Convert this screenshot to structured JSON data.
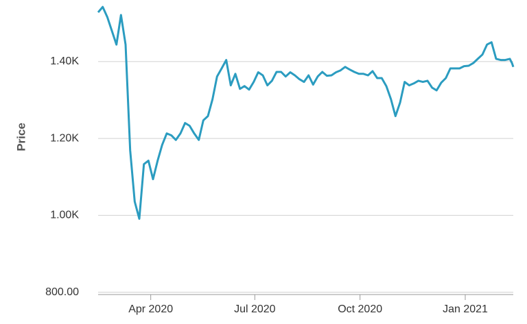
{
  "chart_data": {
    "type": "line",
    "y_label": "Price",
    "color": "#2b9cc0",
    "grid": true,
    "ylim": [
      794,
      1560
    ],
    "yticks": [
      {
        "value": 800,
        "label": "800.00"
      },
      {
        "value": 1000,
        "label": "1.00K"
      },
      {
        "value": 1200,
        "label": "1.20K"
      },
      {
        "value": 1400,
        "label": "1.40K"
      }
    ],
    "xlim": [
      "2020-02-15",
      "2021-02-12"
    ],
    "xticks": [
      {
        "value": "2020-04-01",
        "label": "Apr 2020"
      },
      {
        "value": "2020-07-01",
        "label": "Jul 2020"
      },
      {
        "value": "2020-10-01",
        "label": "Oct 2020"
      },
      {
        "value": "2021-01-01",
        "label": "Jan 2021"
      }
    ],
    "x": [
      "2020-02-15",
      "2020-02-19",
      "2020-02-23",
      "2020-02-27",
      "2020-03-02",
      "2020-03-06",
      "2020-03-10",
      "2020-03-14",
      "2020-03-18",
      "2020-03-22",
      "2020-03-26",
      "2020-03-30",
      "2020-04-03",
      "2020-04-07",
      "2020-04-11",
      "2020-04-15",
      "2020-04-19",
      "2020-04-23",
      "2020-04-27",
      "2020-05-01",
      "2020-05-05",
      "2020-05-09",
      "2020-05-13",
      "2020-05-17",
      "2020-05-21",
      "2020-05-25",
      "2020-05-29",
      "2020-06-02",
      "2020-06-06",
      "2020-06-10",
      "2020-06-14",
      "2020-06-18",
      "2020-06-22",
      "2020-06-26",
      "2020-06-30",
      "2020-07-04",
      "2020-07-08",
      "2020-07-12",
      "2020-07-16",
      "2020-07-20",
      "2020-07-24",
      "2020-07-28",
      "2020-08-01",
      "2020-08-05",
      "2020-08-09",
      "2020-08-13",
      "2020-08-17",
      "2020-08-21",
      "2020-08-25",
      "2020-08-29",
      "2020-09-02",
      "2020-09-06",
      "2020-09-10",
      "2020-09-14",
      "2020-09-18",
      "2020-09-22",
      "2020-09-26",
      "2020-09-30",
      "2020-10-04",
      "2020-10-08",
      "2020-10-12",
      "2020-10-16",
      "2020-10-20",
      "2020-10-24",
      "2020-10-28",
      "2020-11-01",
      "2020-11-05",
      "2020-11-09",
      "2020-11-13",
      "2020-11-17",
      "2020-11-21",
      "2020-11-25",
      "2020-11-29",
      "2020-12-03",
      "2020-12-07",
      "2020-12-11",
      "2020-12-15",
      "2020-12-19",
      "2020-12-23",
      "2020-12-27",
      "2020-12-31",
      "2021-01-04",
      "2021-01-08",
      "2021-01-12",
      "2021-01-16",
      "2021-01-20",
      "2021-01-24",
      "2021-01-28",
      "2021-02-01",
      "2021-02-05",
      "2021-02-09",
      "2021-02-11",
      "2021-02-12"
    ],
    "values": [
      1528,
      1542,
      1516,
      1480,
      1444,
      1521,
      1444,
      1169,
      1036,
      991,
      1133,
      1142,
      1094,
      1142,
      1183,
      1213,
      1208,
      1196,
      1213,
      1240,
      1233,
      1213,
      1196,
      1247,
      1258,
      1302,
      1361,
      1382,
      1404,
      1338,
      1368,
      1329,
      1336,
      1327,
      1347,
      1372,
      1364,
      1338,
      1350,
      1373,
      1373,
      1361,
      1372,
      1364,
      1354,
      1347,
      1364,
      1340,
      1361,
      1373,
      1363,
      1364,
      1372,
      1377,
      1386,
      1379,
      1373,
      1368,
      1368,
      1364,
      1375,
      1357,
      1357,
      1336,
      1302,
      1258,
      1293,
      1347,
      1338,
      1343,
      1350,
      1347,
      1350,
      1332,
      1325,
      1345,
      1357,
      1382,
      1382,
      1382,
      1388,
      1389,
      1396,
      1407,
      1418,
      1444,
      1450,
      1407,
      1404,
      1404,
      1407,
      1395,
      1386
    ]
  }
}
